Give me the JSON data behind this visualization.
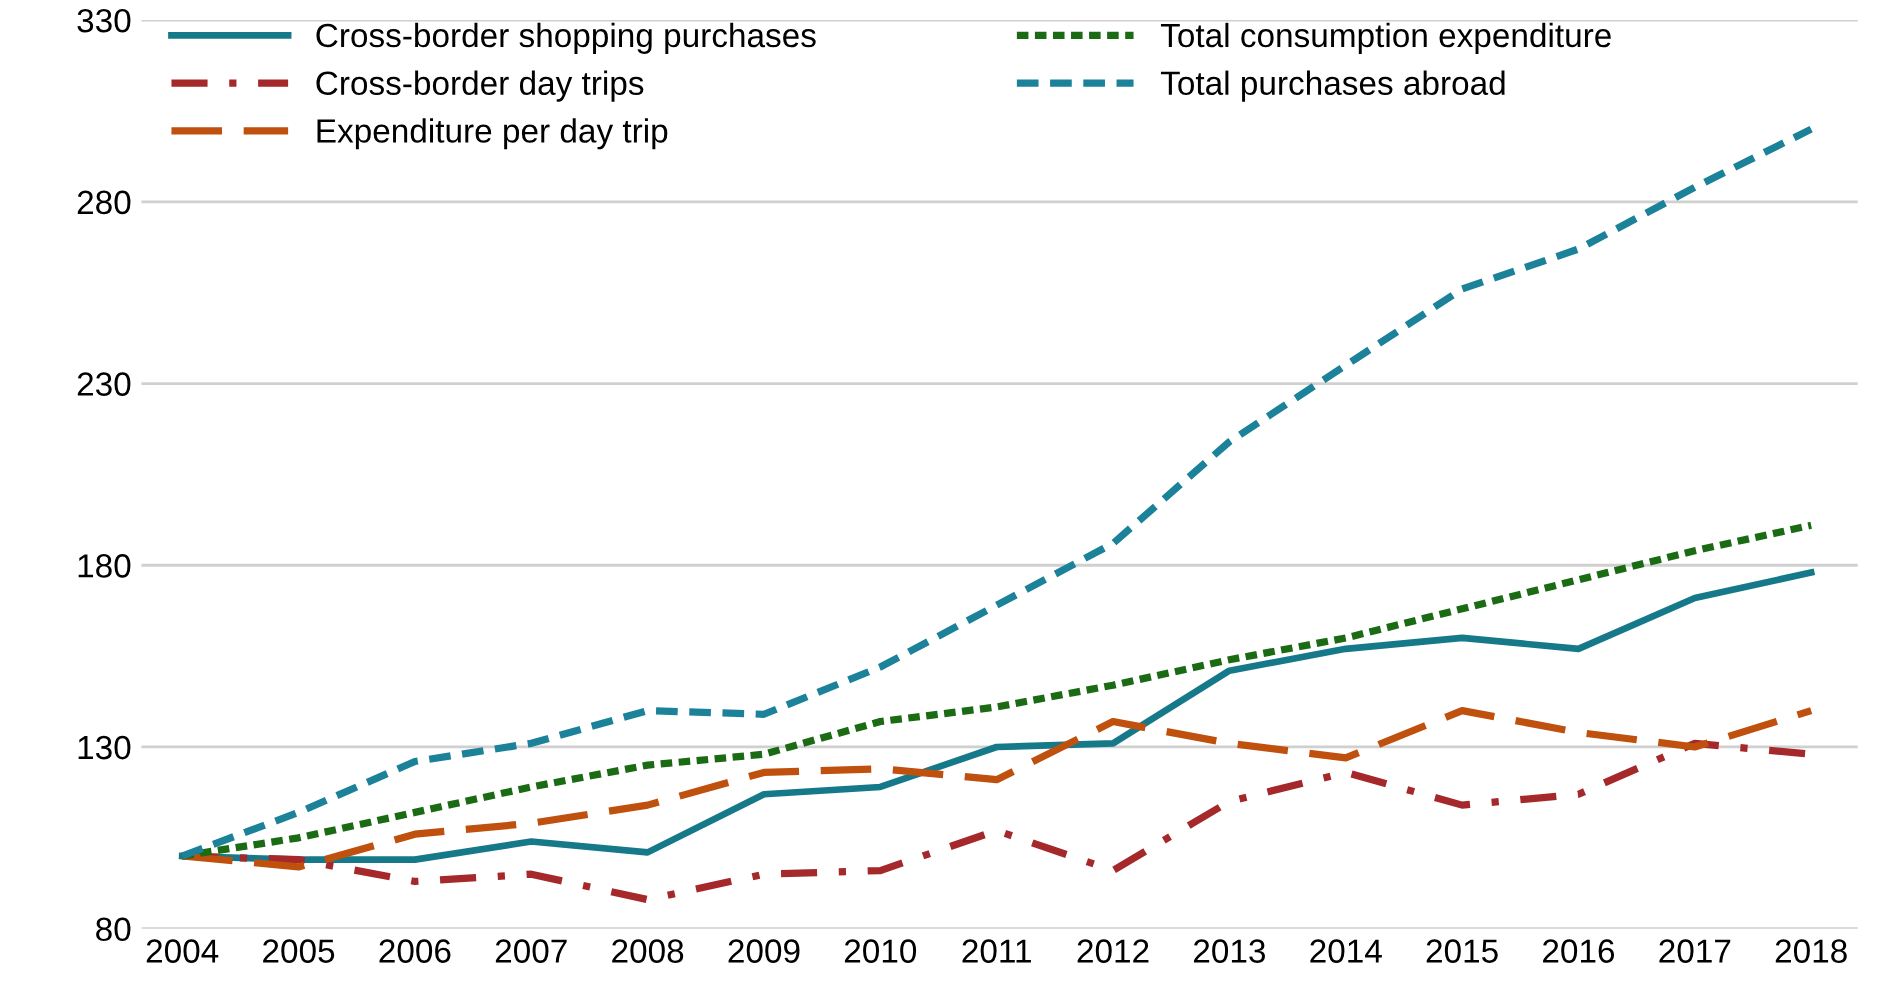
{
  "chart_data": {
    "type": "line",
    "categories": [
      "2004",
      "2005",
      "2006",
      "2007",
      "2008",
      "2009",
      "2010",
      "2011",
      "2012",
      "2013",
      "2014",
      "2015",
      "2016",
      "2017",
      "2018"
    ],
    "series": [
      {
        "name": "Cross-border shopping purchases",
        "color": "#16798a",
        "line_style": "solid",
        "values": [
          100,
          99,
          99,
          104,
          101,
          117,
          119,
          130,
          131,
          151,
          157,
          160,
          157,
          171,
          178
        ]
      },
      {
        "name": "Cross-border day trips",
        "color": "#a5282b",
        "line_style": "dashdot",
        "values": [
          100,
          99,
          93,
          95,
          88,
          95,
          96,
          107,
          96,
          115,
          123,
          114,
          117,
          131,
          128
        ]
      },
      {
        "name": "Expenditure per day trip",
        "color": "#c0500e",
        "line_style": "longdash",
        "values": [
          100,
          97,
          106,
          109,
          114,
          123,
          124,
          121,
          137,
          131,
          127,
          140,
          134,
          130,
          140
        ]
      },
      {
        "name": "Total consumption expenditure",
        "color": "#1b6b14",
        "line_style": "dotted",
        "values": [
          100,
          105,
          112,
          119,
          125,
          128,
          137,
          141,
          147,
          154,
          160,
          168,
          176,
          184,
          191
        ]
      },
      {
        "name": "Total purchases abroad",
        "color": "#1b8299",
        "line_style": "dashed",
        "values": [
          100,
          112,
          126,
          131,
          140,
          139,
          152,
          169,
          186,
          214,
          235,
          256,
          267,
          284,
          300
        ]
      }
    ],
    "ylim": [
      80,
      330
    ],
    "yticks": [
      80,
      130,
      180,
      230,
      280,
      330
    ],
    "grid": "y",
    "legend": "top left",
    "marker": "none"
  }
}
